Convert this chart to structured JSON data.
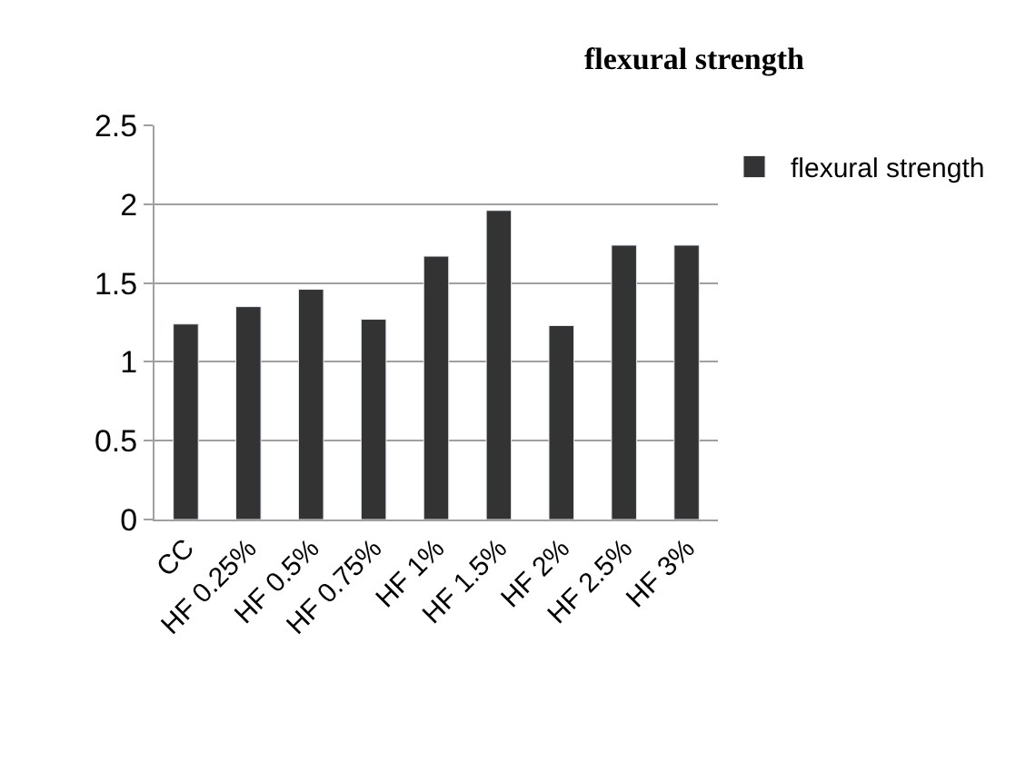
{
  "chart_data": {
    "type": "bar",
    "title": "flexural strength",
    "categories": [
      "CC",
      "HF 0.25%",
      "HF 0.5%",
      "HF 0.75%",
      "HF 1%",
      "HF 1.5%",
      "HF 2%",
      "HF 2.5%",
      "HF 3%"
    ],
    "series": [
      {
        "name": "flexural strength",
        "color": "#333333",
        "values": [
          1.24,
          1.35,
          1.46,
          1.27,
          1.67,
          1.96,
          1.23,
          1.74,
          1.74
        ]
      }
    ],
    "ylim": [
      0,
      2.5
    ],
    "yticks": [
      0,
      0.5,
      1,
      1.5,
      2,
      2.5
    ],
    "grid": "y",
    "legend": "right"
  }
}
